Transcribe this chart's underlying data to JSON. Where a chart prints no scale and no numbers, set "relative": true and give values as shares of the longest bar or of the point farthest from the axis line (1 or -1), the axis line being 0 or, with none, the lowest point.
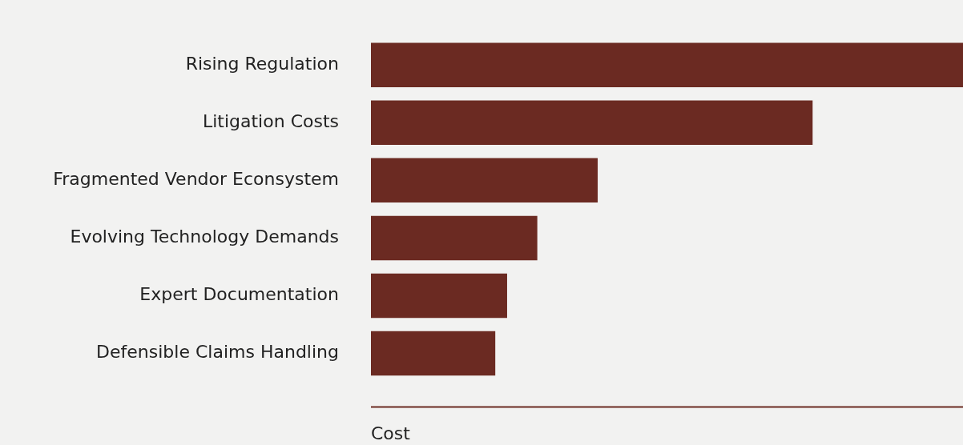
{
  "chart_data": {
    "type": "bar",
    "orientation": "horizontal",
    "relative": true,
    "xlabel": "Cost",
    "tick_labels": "y",
    "grid": false,
    "legend": false,
    "categories": [
      "Rising Regulation",
      "Litigation Costs",
      "Fragmented Vendor Econsystem",
      "Evolving Technology Demands",
      "Expert Documentation",
      "Defensible Claims Handling"
    ],
    "values": [
      1,
      0.746,
      0.383,
      0.281,
      0.23,
      0.21
    ],
    "color": "#6b2a22"
  }
}
